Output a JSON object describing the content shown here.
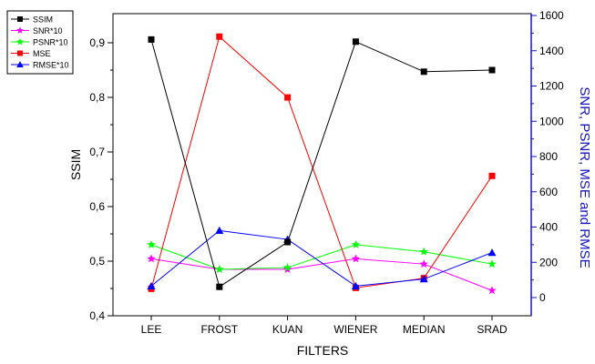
{
  "chart_data": {
    "type": "line",
    "xlabel": "FILTERS",
    "ylabel_left": "SSIM",
    "ylabel_right": "SNR, PSNR, MSE and RMSE",
    "categories": [
      "LEE",
      "FROST",
      "KUAN",
      "WIENER",
      "MEDIAN",
      "SRAD"
    ],
    "y_left": {
      "min": 0.4,
      "max": 0.95,
      "ticks": [
        0.4,
        0.5,
        0.6,
        0.7,
        0.8,
        0.9
      ],
      "tick_labels": [
        "0,4",
        "0,5",
        "0,6",
        "0,7",
        "0,8",
        "0,9"
      ]
    },
    "y_right": {
      "min": -200,
      "max": 1600,
      "ticks": [
        0,
        200,
        400,
        600,
        800,
        1000,
        1200,
        1400,
        1600
      ],
      "tick_labels": [
        "0",
        "200",
        "400",
        "600",
        "800",
        "1000",
        "1200",
        "1400",
        "1600"
      ]
    },
    "legend_position": "top-left",
    "series": [
      {
        "name": "SSIM",
        "axis": "left",
        "color": "#000000",
        "marker": "square",
        "values": [
          0.906,
          0.453,
          0.535,
          0.902,
          0.847,
          0.85
        ]
      },
      {
        "name": "SNR*10",
        "axis": "right",
        "color": "#ff00ff",
        "marker": "star",
        "values": [
          220,
          160,
          160,
          220,
          190,
          40
        ]
      },
      {
        "name": "PSNR*10",
        "axis": "right",
        "color": "#00ff00",
        "marker": "star",
        "values": [
          300,
          160,
          170,
          300,
          260,
          190
        ]
      },
      {
        "name": "MSE",
        "axis": "right",
        "color": "#ff0000",
        "marker": "square",
        "values": [
          50,
          1480,
          1135,
          55,
          110,
          690
        ]
      },
      {
        "name": "RMSE*10",
        "axis": "right",
        "color": "#0000ff",
        "marker": "triangle",
        "values": [
          65,
          380,
          330,
          65,
          105,
          255
        ]
      }
    ]
  }
}
